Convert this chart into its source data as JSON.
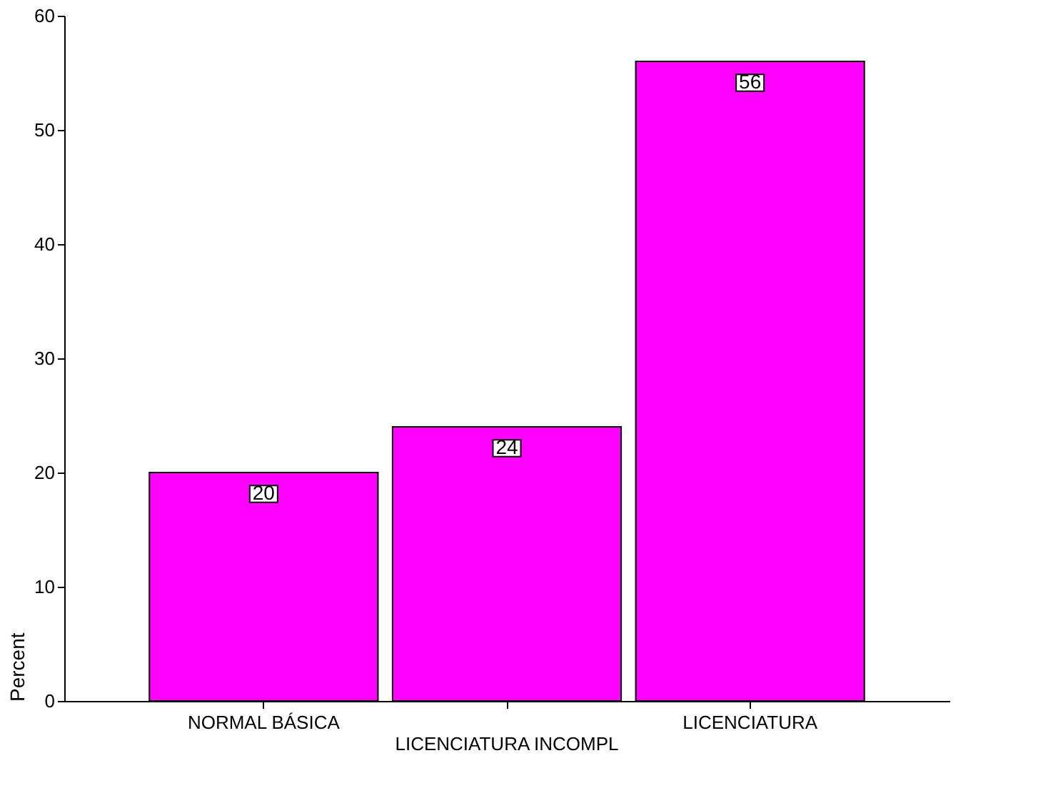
{
  "chart_data": {
    "type": "bar",
    "categories": [
      "NORMAL BÁSICA",
      "LICENCIATURA INCOMPL",
      "LICENCIATURA"
    ],
    "values": [
      20,
      24,
      56
    ],
    "color": "#ff00ff",
    "ylabel": "Percent",
    "ylim": [
      0,
      60
    ],
    "yticks": [
      0,
      10,
      20,
      30,
      40,
      50,
      60
    ],
    "grid": false,
    "data_labels": true
  }
}
